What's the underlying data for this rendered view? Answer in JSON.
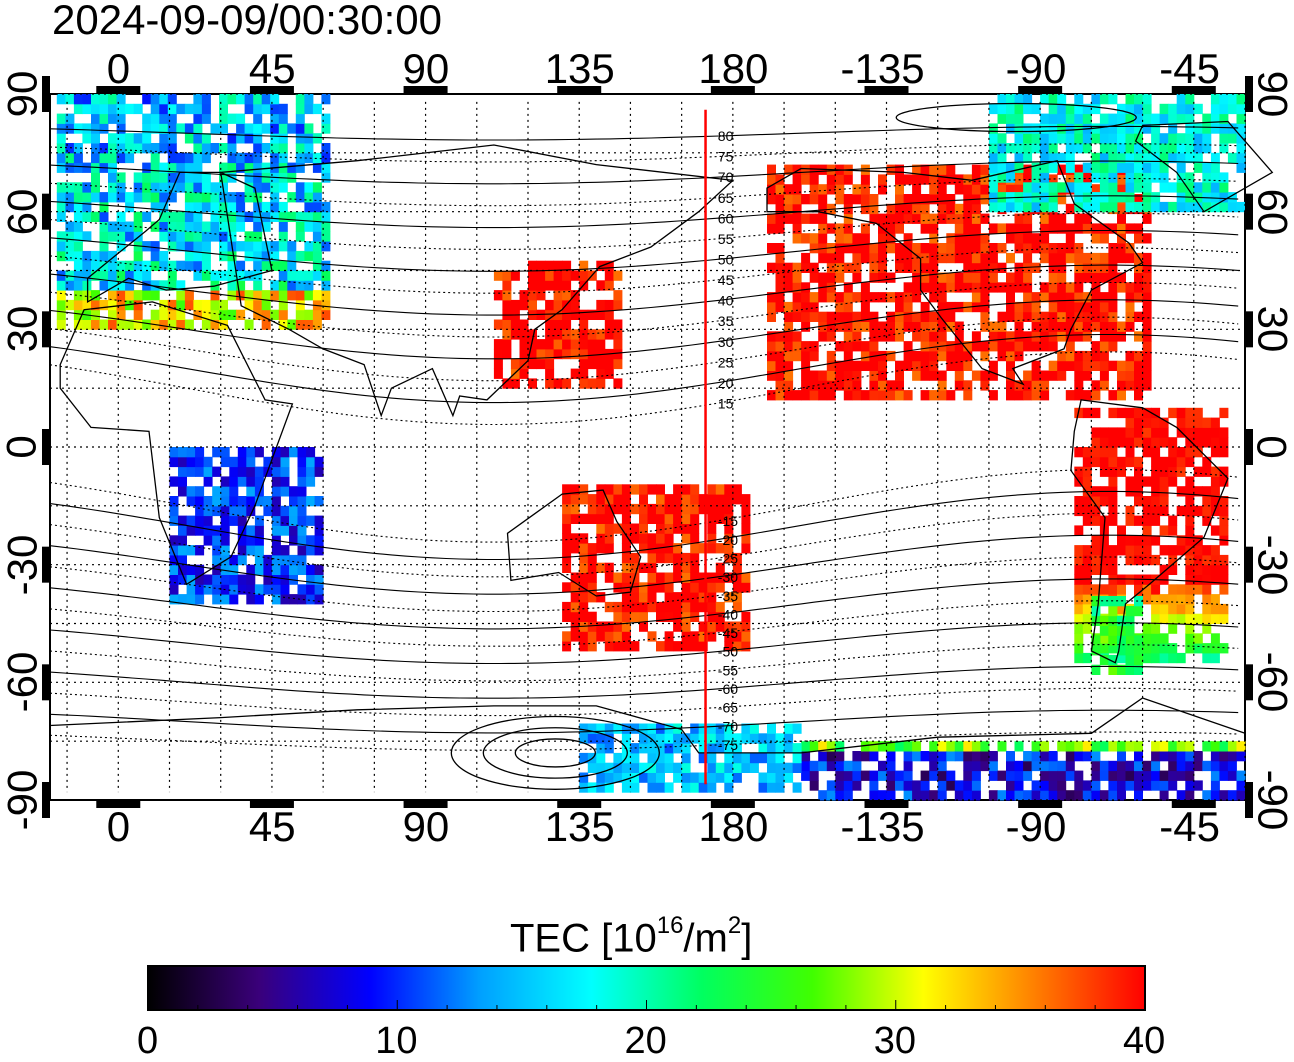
{
  "timestamp": "2024-09-09/00:30:00",
  "map": {
    "lon_ticks_top": [
      "0",
      "45",
      "90",
      "135",
      "180",
      "-135",
      "-90",
      "-45"
    ],
    "lon_ticks_bottom": [
      "0",
      "45",
      "90",
      "135",
      "180",
      "-135",
      "-90",
      "-45"
    ],
    "lat_ticks_left": [
      "90",
      "60",
      "30",
      "0",
      "-30",
      "-60",
      "-90"
    ],
    "lat_ticks_right": [
      "90",
      "60",
      "30",
      "0",
      "-30",
      "-60",
      "-90"
    ],
    "lon_tick_values": [
      0,
      45,
      90,
      135,
      180,
      225,
      270,
      315
    ],
    "lat_tick_values": [
      90,
      60,
      30,
      0,
      -30,
      -60,
      -90
    ],
    "lon_range": [
      -20,
      330
    ],
    "lat_range": [
      -90,
      90
    ],
    "grid": "dotted, 15 degree spacing",
    "meridian_marker_lon": 172,
    "meridian_marker_color": "#ff0000",
    "magnetic_lat_labels": [
      "80",
      "75",
      "70",
      "65",
      "60",
      "55",
      "50",
      "45",
      "40",
      "35",
      "30",
      "25",
      "20",
      "15",
      "-15",
      "-20",
      "-25",
      "-30",
      "-35",
      "-40",
      "-45",
      "-50",
      "-55",
      "-60",
      "-65",
      "-70",
      "-75"
    ]
  },
  "colorbar": {
    "title_main": "TEC  [10",
    "title_exp": "16",
    "title_unit": "/m",
    "title_unit_exp": "2",
    "title_close": "]",
    "labels": [
      "0",
      "10",
      "20",
      "30",
      "40"
    ],
    "range": [
      0,
      40
    ],
    "colors": [
      "#000000",
      "#3a007a",
      "#0000ff",
      "#00a0ff",
      "#00ffff",
      "#00ff60",
      "#40ff00",
      "#ffff00",
      "#ff8000",
      "#ff0000"
    ]
  },
  "tec_regions": [
    {
      "name": "north-america",
      "lon": [
        190,
        302
      ],
      "lat": [
        12,
        72
      ],
      "tec": 40
    },
    {
      "name": "east-asia",
      "lon": [
        110,
        147
      ],
      "lat": [
        15,
        47
      ],
      "tec": 40
    },
    {
      "name": "australia-nz",
      "lon": [
        130,
        185
      ],
      "lat": [
        -52,
        -10
      ],
      "tec": 40
    },
    {
      "name": "south-america",
      "lon": [
        280,
        325
      ],
      "lat": [
        -55,
        10
      ],
      "tec": 38
    },
    {
      "name": "south-america-south",
      "lon": [
        285,
        300
      ],
      "lat": [
        -58,
        -40
      ],
      "tec": 24
    },
    {
      "name": "europe",
      "lon": [
        -18,
        60
      ],
      "lat": [
        30,
        88
      ],
      "tec": 20
    },
    {
      "name": "greenland-arctic",
      "lon": [
        255,
        330
      ],
      "lat": [
        60,
        88
      ],
      "tec": 18
    },
    {
      "name": "africa",
      "lon": [
        15,
        60
      ],
      "lat": [
        -40,
        0
      ],
      "tec": 10
    },
    {
      "name": "antarctic-coast",
      "lon": [
        200,
        330
      ],
      "lat": [
        -90,
        -75
      ],
      "tec": 6
    },
    {
      "name": "antarctic-ring",
      "lon": [
        135,
        200
      ],
      "lat": [
        -88,
        -72
      ],
      "tec": 15
    }
  ]
}
